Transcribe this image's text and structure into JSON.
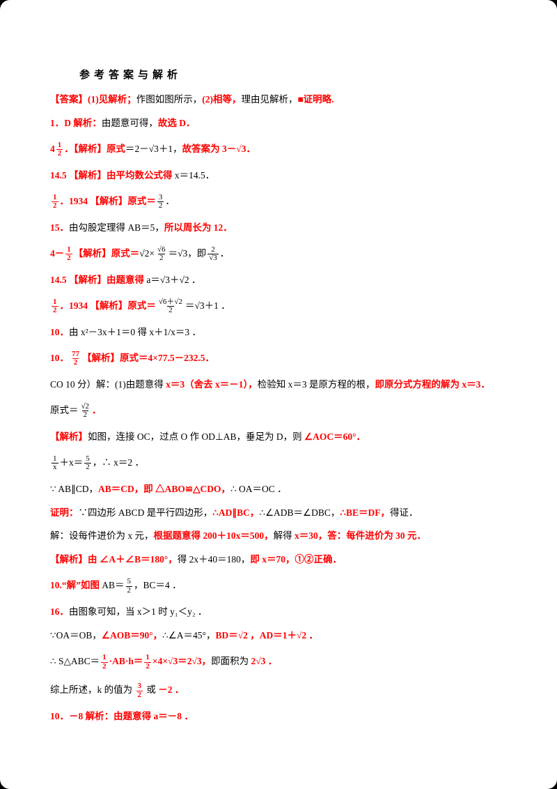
{
  "page": {
    "title": "参考答案与解析",
    "accent_color": "#ff0000",
    "text_color": "#000000",
    "background_color": "#ffffff"
  },
  "lines": [
    {
      "segments": [
        {
          "kind": "text",
          "color": "red",
          "text": "【答案】(1)见解析；"
        },
        {
          "kind": "text",
          "color": "black",
          "text": "作图如图所示，"
        },
        {
          "kind": "text",
          "color": "red",
          "text": "(2)相等，"
        },
        {
          "kind": "text",
          "color": "black",
          "text": "理由见解析，"
        },
        {
          "kind": "text",
          "color": "red",
          "text": "■证明略."
        }
      ]
    },
    {
      "segments": [
        {
          "kind": "text",
          "color": "red",
          "text": "1．D 解析："
        },
        {
          "kind": "text",
          "color": "black",
          "text": "由题意可得，"
        },
        {
          "kind": "text",
          "color": "red",
          "text": "故选 D．"
        }
      ]
    },
    {
      "segments": [
        {
          "kind": "text",
          "color": "red",
          "text": "4"
        },
        {
          "kind": "frac",
          "color": "red",
          "num": "1",
          "den": "2"
        },
        {
          "kind": "text",
          "color": "red",
          "text": "．【解析】原式"
        },
        {
          "kind": "text",
          "color": "black",
          "text": "＝2－√3＋1，"
        },
        {
          "kind": "text",
          "color": "red",
          "text": "故答案为 3－√3．"
        }
      ]
    },
    {
      "segments": [
        {
          "kind": "text",
          "color": "red",
          "text": "14.5 【解析】由平均数公式得"
        },
        {
          "kind": "text",
          "color": "black",
          "text": " x＝14.5．"
        }
      ]
    },
    {
      "segments": [
        {
          "kind": "frac",
          "color": "red",
          "num": "1",
          "den": "2"
        },
        {
          "kind": "text",
          "color": "red",
          "text": "．1934 【解析】原式＝"
        },
        {
          "kind": "frac",
          "color": "black",
          "num": "3",
          "den": "2"
        },
        {
          "kind": "text",
          "color": "black",
          "text": "．"
        }
      ]
    },
    {
      "segments": [
        {
          "kind": "text",
          "color": "red",
          "text": "15．"
        },
        {
          "kind": "text",
          "color": "black",
          "text": "由勾股定理得 AB＝5，"
        },
        {
          "kind": "text",
          "color": "red",
          "text": "所以周长为 12．"
        }
      ]
    },
    {
      "segments": [
        {
          "kind": "text",
          "color": "red",
          "text": "4－"
        },
        {
          "kind": "frac",
          "color": "red",
          "num": "1",
          "den": "2"
        },
        {
          "kind": "text",
          "color": "red",
          "text": "【解析】原式＝"
        },
        {
          "kind": "text",
          "color": "black",
          "text": "√2×"
        },
        {
          "kind": "frac",
          "color": "black",
          "num": "√6",
          "den": "2"
        },
        {
          "kind": "text",
          "color": "black",
          "text": "＝√3，即"
        },
        {
          "kind": "frac",
          "color": "black",
          "num": "2",
          "den": "√3"
        },
        {
          "kind": "text",
          "color": "black",
          "text": "．"
        }
      ]
    },
    {
      "segments": [
        {
          "kind": "text",
          "color": "red",
          "text": "14.5 【解析】由题意得"
        },
        {
          "kind": "text",
          "color": "black",
          "text": " a＝√3＋√2 ．"
        }
      ]
    },
    {
      "segments": [
        {
          "kind": "frac",
          "color": "red",
          "num": "1",
          "den": "2"
        },
        {
          "kind": "text",
          "color": "red",
          "text": "．1934 【解析】原式＝"
        },
        {
          "kind": "frac",
          "color": "black",
          "num": "√6＋√2",
          "den": "2"
        },
        {
          "kind": "text",
          "color": "black",
          "text": "＝√3＋1 ．"
        }
      ]
    },
    {
      "segments": [
        {
          "kind": "text",
          "color": "red",
          "text": "10．"
        },
        {
          "kind": "text",
          "color": "black",
          "text": "由 x²－3x＋1＝0 得 x＋1/x＝3 ．"
        }
      ]
    },
    {
      "segments": [
        {
          "kind": "text",
          "color": "red",
          "text": "10．"
        },
        {
          "kind": "frac",
          "color": "red",
          "num": "77",
          "den": "2"
        },
        {
          "kind": "text",
          "color": "red",
          "text": "【解析】原式＝4×77.5－232.5．"
        }
      ]
    },
    {
      "segments": [
        {
          "kind": "text",
          "color": "black",
          "text": "CO 10 分）解：(1)由题意得 "
        },
        {
          "kind": "text",
          "color": "red",
          "text": "x＝3（舍去 x＝－1），"
        },
        {
          "kind": "text",
          "color": "black",
          "text": "检验知 x＝3 是原方程的根，"
        },
        {
          "kind": "text",
          "color": "red",
          "text": "即原分式方程的解为 x＝3．"
        }
      ]
    },
    {
      "segments": [
        {
          "kind": "text",
          "color": "black",
          "text": "原式＝"
        },
        {
          "kind": "frac",
          "color": "black",
          "num": "√2",
          "den": "2"
        },
        {
          "kind": "text",
          "color": "red",
          "text": "．"
        }
      ]
    },
    {
      "segments": [
        {
          "kind": "text",
          "color": "red",
          "text": "【解析】"
        },
        {
          "kind": "text",
          "color": "black",
          "text": "如图，连接 OC，过点 O 作 OD⊥AB，垂足为 D，则 "
        },
        {
          "kind": "text",
          "color": "red",
          "text": "∠AOC＝60°．"
        }
      ]
    },
    {
      "segments": [
        {
          "kind": "frac",
          "color": "black",
          "num": "1",
          "den": "x"
        },
        {
          "kind": "text",
          "color": "black",
          "text": "＋x＝"
        },
        {
          "kind": "frac",
          "color": "black",
          "num": "5",
          "den": "2"
        },
        {
          "kind": "text",
          "color": "black",
          "text": "，∴ x＝2 ．"
        }
      ]
    },
    {
      "segments": [
        {
          "kind": "text",
          "color": "black",
          "text": "∵ AB∥CD，"
        },
        {
          "kind": "text",
          "color": "red",
          "text": "AB＝CD，即 △ABO≌△CDO，"
        },
        {
          "kind": "text",
          "color": "black",
          "text": "∴ OA＝OC ．"
        }
      ]
    },
    {
      "segments": [
        {
          "kind": "text",
          "color": "red",
          "text": "证明："
        },
        {
          "kind": "text",
          "color": "black",
          "text": "∵四边形 ABCD 是平行四边形，"
        },
        {
          "kind": "text",
          "color": "red",
          "text": "∴AD∥BC，"
        },
        {
          "kind": "text",
          "color": "black",
          "text": "∴∠ADB＝∠DBC，"
        },
        {
          "kind": "text",
          "color": "red",
          "text": "∴BE＝DF，"
        },
        {
          "kind": "text",
          "color": "black",
          "text": "得证．"
        }
      ]
    },
    {
      "segments": [
        {
          "kind": "text",
          "color": "black",
          "text": "解：设每件进价为 x 元，"
        },
        {
          "kind": "text",
          "color": "red",
          "text": "根据题意得 200＋10x＝500，"
        },
        {
          "kind": "text",
          "color": "black",
          "text": "解得 "
        },
        {
          "kind": "text",
          "color": "red",
          "text": "x＝30，答：每件进价为 30 元．"
        }
      ]
    },
    {
      "segments": [
        {
          "kind": "text",
          "color": "red",
          "text": "【解析】由 ∠A＋∠B＝180°，"
        },
        {
          "kind": "text",
          "color": "black",
          "text": "得 2x＋40＝180，"
        },
        {
          "kind": "text",
          "color": "red",
          "text": "即 x＝70，①②正确．"
        }
      ]
    },
    {
      "segments": [
        {
          "kind": "text",
          "color": "red",
          "text": "10.“解”如图 "
        },
        {
          "kind": "text",
          "color": "black",
          "text": "AB＝"
        },
        {
          "kind": "frac",
          "color": "black",
          "num": "5",
          "den": "2"
        },
        {
          "kind": "text",
          "color": "black",
          "text": "，BC＝4 ．"
        }
      ]
    },
    {
      "segments": [
        {
          "kind": "text",
          "color": "red",
          "text": "16．"
        },
        {
          "kind": "text",
          "color": "black",
          "text": "由图象可知，当 x＞1 时 y₁＜y₂ ．"
        }
      ]
    },
    {
      "segments": [
        {
          "kind": "text",
          "color": "black",
          "text": "∵OA＝OB，"
        },
        {
          "kind": "text",
          "color": "red",
          "text": "∠AOB＝90°，"
        },
        {
          "kind": "text",
          "color": "black",
          "text": "∴∠A＝45°，"
        },
        {
          "kind": "text",
          "color": "red",
          "text": "BD＝√2 ，AD＝1＋√2 ．"
        }
      ]
    },
    {
      "segments": [
        {
          "kind": "text",
          "color": "black",
          "text": "∴ S△ABC＝"
        },
        {
          "kind": "frac",
          "color": "red",
          "num": "1",
          "den": "2"
        },
        {
          "kind": "text",
          "color": "red",
          "text": "·AB·h＝"
        },
        {
          "kind": "frac",
          "color": "red",
          "num": "1",
          "den": "2"
        },
        {
          "kind": "text",
          "color": "red",
          "text": "×4×√3＝2√3，"
        },
        {
          "kind": "text",
          "color": "black",
          "text": "即面积为 "
        },
        {
          "kind": "text",
          "color": "red",
          "text": "2√3 ．"
        }
      ]
    },
    {
      "segments": [
        {
          "kind": "text",
          "color": "black",
          "text": "综上所述，k 的值为 "
        },
        {
          "kind": "frac",
          "color": "red",
          "num": "3",
          "den": "2"
        },
        {
          "kind": "text",
          "color": "black",
          "text": " 或 "
        },
        {
          "kind": "text",
          "color": "red",
          "text": "－2 ．"
        }
      ]
    },
    {
      "segments": [
        {
          "kind": "text",
          "color": "red",
          "text": "10．－8 解析："
        },
        {
          "kind": "text",
          "color": "red",
          "text": "由题意得 a＝－8 ．"
        }
      ]
    }
  ]
}
